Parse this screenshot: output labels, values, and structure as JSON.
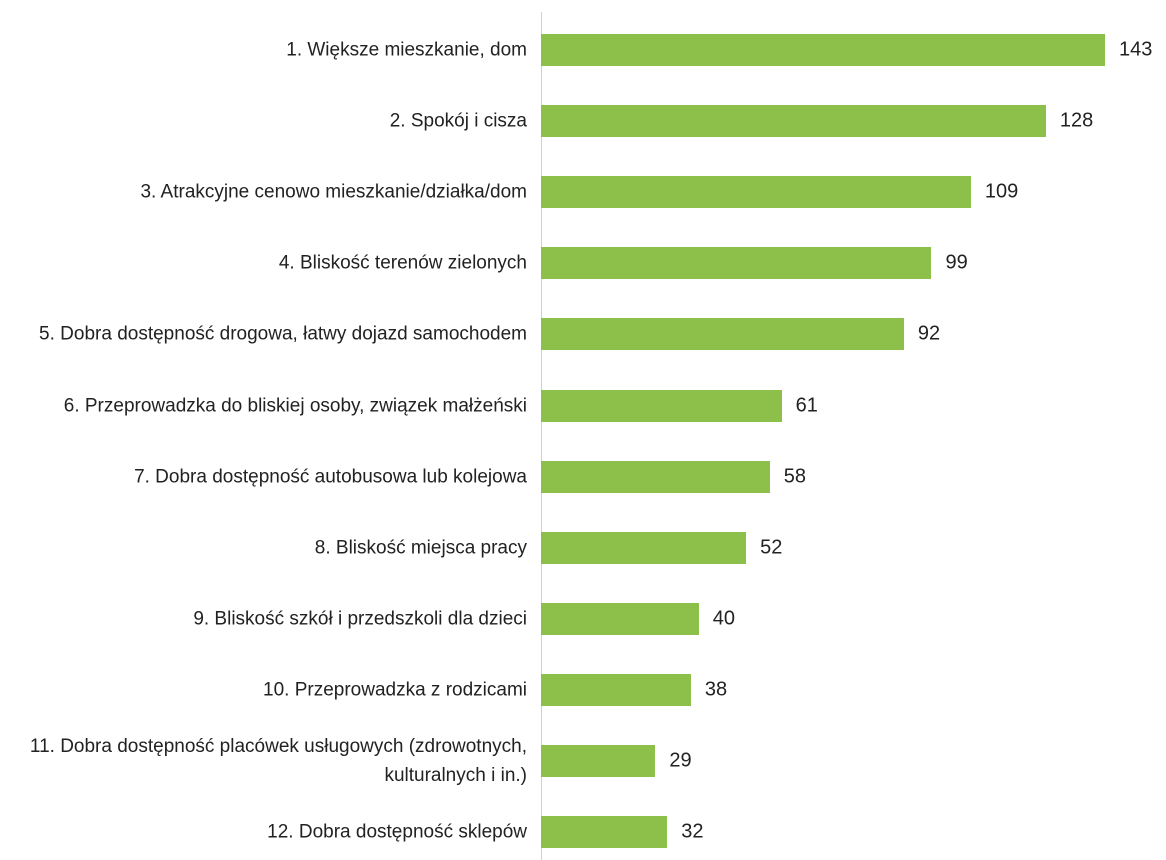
{
  "chart_data": {
    "type": "bar",
    "orientation": "horizontal",
    "categories": [
      "1. Większe mieszkanie, dom",
      "2. Spokój i cisza",
      "3. Atrakcyjne cenowo mieszkanie/działka/dom",
      "4. Bliskość terenów zielonych",
      "5. Dobra dostępność drogowa, łatwy dojazd samochodem",
      "6. Przeprowadzka do bliskiej osoby, związek małżeński",
      "7. Dobra dostępność autobusowa lub kolejowa",
      "8. Bliskość miejsca pracy",
      "9. Bliskość szkół i przedszkoli dla dzieci",
      "10. Przeprowadzka z rodzicami",
      "11. Dobra dostępność placówek usługowych (zdrowotnych, kulturalnych i in.)",
      "12. Dobra dostępność sklepów"
    ],
    "values": [
      143,
      128,
      109,
      99,
      92,
      61,
      58,
      52,
      40,
      38,
      29,
      32
    ],
    "color": "#8dc04b"
  }
}
